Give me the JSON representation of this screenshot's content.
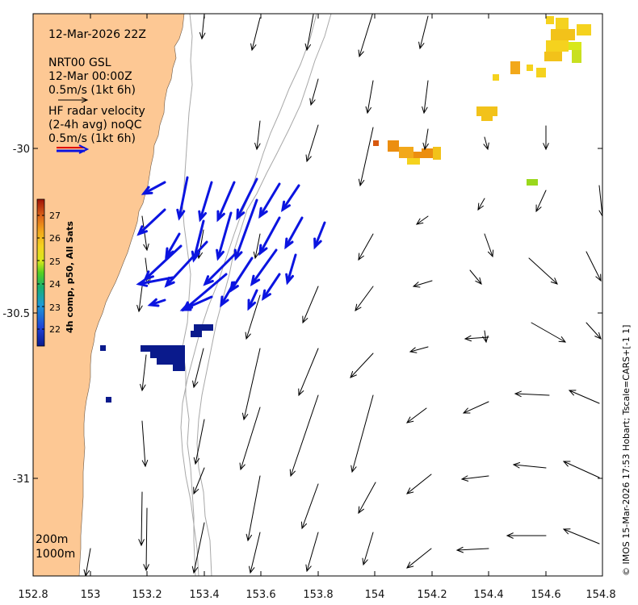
{
  "info": {
    "datetime": "12-Mar-2026 22Z",
    "model": "NRT00 GSL",
    "model_time": "12-Mar 00:00Z",
    "model_scale": "0.5m/s (1kt 6h)",
    "hf_title": "HF radar velocity",
    "hf_avg": "(2-4h avg) noQC",
    "hf_scale": "0.5m/s (1kt 6h)"
  },
  "colorbar": {
    "title": "4h comp, p50, All Sats",
    "ticks": [
      "22",
      "23",
      "24",
      "25",
      "26",
      "27"
    ],
    "min": 21.6,
    "max": 27.8
  },
  "isobaths": [
    "200m",
    "1000m"
  ],
  "credit": "© IMOS 15-Mar-2026 17:53 Hobart; Tscale=CARS+[-1 1]",
  "axes": {
    "x_ticks": [
      "152.8",
      "153",
      "153.2",
      "153.4",
      "153.6",
      "153.8",
      "154",
      "154.2",
      "154.4",
      "154.6",
      "154.8"
    ],
    "y_ticks": [
      "-30",
      "-30.5",
      "-31"
    ],
    "xlim": [
      152.8,
      154.8
    ],
    "ylim": [
      -31.3,
      -29.58
    ]
  },
  "colors": {
    "land": "#fdc894",
    "radar_arrow": "#0b14e0",
    "model_arrow": "#000000"
  }
}
